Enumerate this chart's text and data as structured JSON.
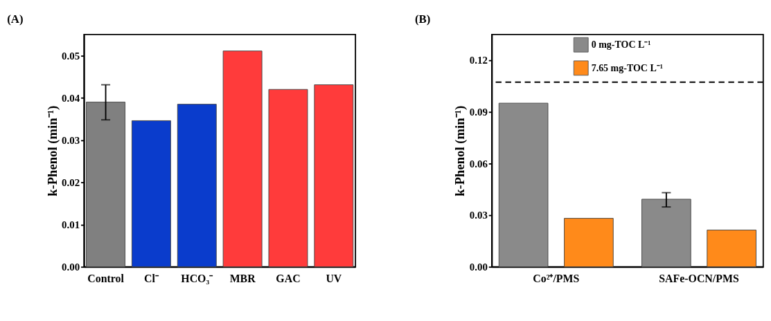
{
  "chart_data": [
    {
      "type": "bar",
      "title": "(A)",
      "ylabel": "k-Phenol (min⁻¹)",
      "categories": [
        "Control",
        "Cl⁻",
        "HCO₃⁻",
        "MBR",
        "GAC",
        "UV"
      ],
      "values": [
        0.039,
        0.0346,
        0.0385,
        0.0511,
        0.042,
        0.0431
      ],
      "colors": [
        "#808080",
        "#0a3ccc",
        "#0a3ccc",
        "#ff3b3b",
        "#ff3b3b",
        "#ff3b3b"
      ],
      "errors": [
        [
          0.0348,
          0.0431
        ],
        null,
        null,
        null,
        null,
        null
      ],
      "ylim": [
        0,
        0.055
      ],
      "yticks": [
        {
          "value": 0,
          "label": "0.00"
        },
        {
          "value": 0.01,
          "label": "0.01"
        },
        {
          "value": 0.02,
          "label": "0.02"
        },
        {
          "value": 0.03,
          "label": "0.03"
        },
        {
          "value": 0.04,
          "label": "0.04"
        },
        {
          "value": 0.05,
          "label": "0.05"
        }
      ],
      "grid": false
    },
    {
      "type": "bar",
      "title": "(B)",
      "ylabel": "k-Phenol (min⁻¹)",
      "categories": [
        "Co²⁺/PMS",
        "SAFe-OCN/PMS"
      ],
      "series": [
        {
          "name": "0 mg-TOC L⁻¹",
          "color": "#8a8a8a",
          "values": [
            0.0951,
            0.0393
          ],
          "errors": [
            null,
            [
              0.0348,
              0.0431
            ]
          ]
        },
        {
          "name": "7.65 mg-TOC L⁻¹",
          "color": "#ff8a1a",
          "values": [
            0.0282,
            0.0214
          ]
        }
      ],
      "ylim": [
        0,
        0.135
      ],
      "yticks": [
        {
          "value": 0,
          "label": "0.00"
        },
        {
          "value": 0.03,
          "label": "0.03"
        },
        {
          "value": 0.06,
          "label": "0.06"
        },
        {
          "value": 0.09,
          "label": "0.09"
        },
        {
          "value": 0.12,
          "label": "0.12"
        }
      ],
      "ref_lines": [
        {
          "axis": "y",
          "value": 0.1073,
          "line_style": "dashed",
          "color": "#000000"
        }
      ],
      "grid": false,
      "legend": "top"
    }
  ]
}
